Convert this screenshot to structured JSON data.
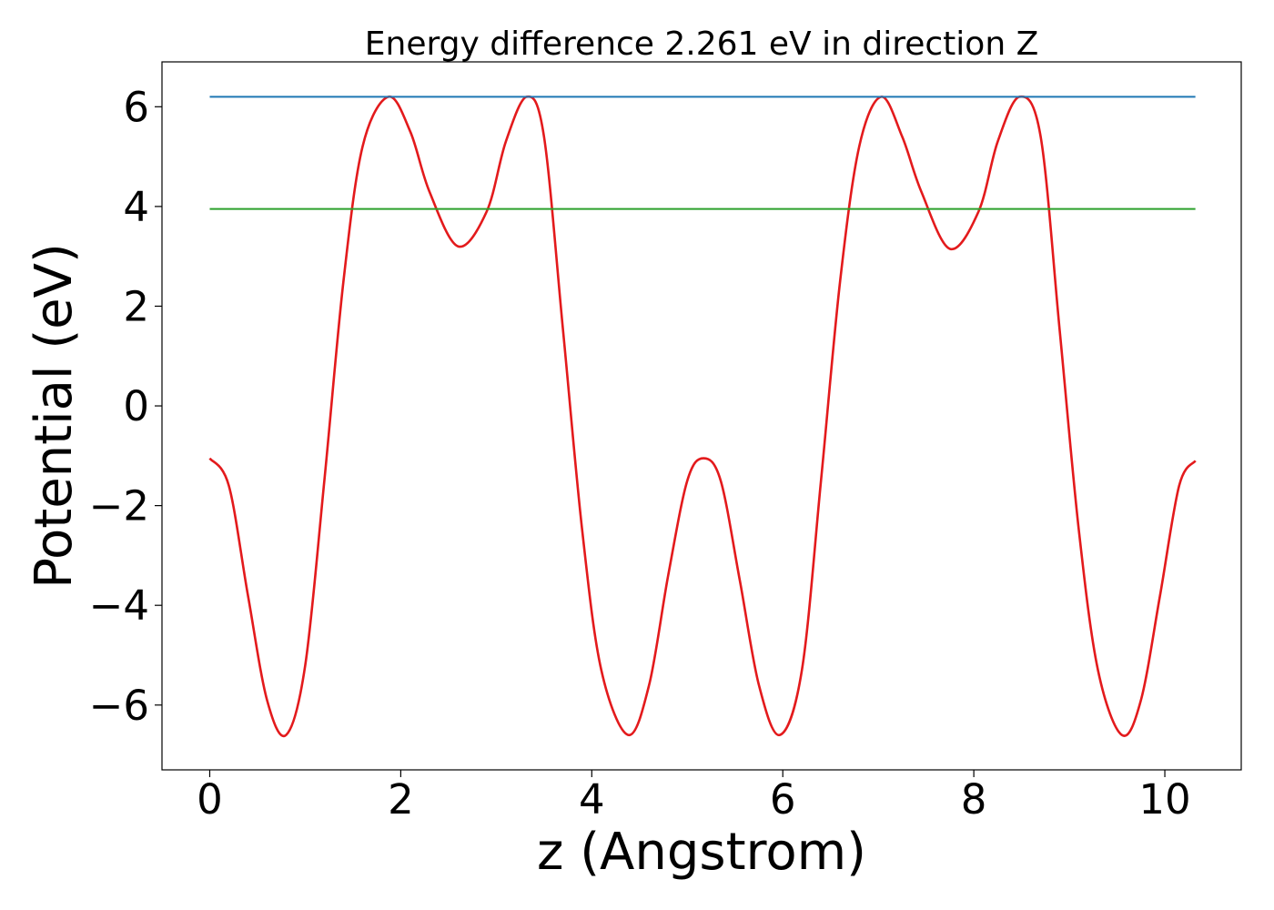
{
  "chart_data": {
    "type": "line",
    "title": "Energy difference 2.261 eV in direction Z",
    "xlabel": "z (Angstrom)",
    "ylabel": "Potential (eV)",
    "xlim": [
      -0.5,
      10.8
    ],
    "ylim": [
      -7.3,
      6.9
    ],
    "xticks": [
      0,
      2,
      4,
      6,
      8,
      10
    ],
    "xtick_labels": [
      "0",
      "2",
      "4",
      "6",
      "8",
      "10"
    ],
    "yticks": [
      -6,
      -4,
      -2,
      0,
      2,
      4,
      6
    ],
    "ytick_labels": [
      "−6",
      "−4",
      "−2",
      "0",
      "2",
      "4",
      "6"
    ],
    "grid": false,
    "series": [
      {
        "color": "#e31a1c",
        "x": [
          0.0,
          0.2,
          0.4,
          0.6,
          0.8,
          1.0,
          1.2,
          1.4,
          1.6,
          1.87,
          2.1,
          2.3,
          2.6,
          2.9,
          3.1,
          3.32,
          3.5,
          3.7,
          3.9,
          4.1,
          4.38,
          4.6,
          4.8,
          5.0,
          5.17,
          5.35,
          5.55,
          5.75,
          5.97,
          6.2,
          6.4,
          6.6,
          6.8,
          7.03,
          7.25,
          7.45,
          7.75,
          8.05,
          8.25,
          8.48,
          8.7,
          8.9,
          9.1,
          9.3,
          9.55,
          9.75,
          9.95,
          10.15,
          10.32
        ],
        "y": [
          -1.05,
          -1.6,
          -3.8,
          -5.9,
          -6.6,
          -5.2,
          -1.5,
          2.5,
          5.2,
          6.2,
          5.5,
          4.3,
          3.2,
          3.9,
          5.3,
          6.2,
          5.4,
          1.5,
          -2.5,
          -5.3,
          -6.6,
          -5.6,
          -3.4,
          -1.5,
          -1.05,
          -1.5,
          -3.5,
          -5.6,
          -6.6,
          -5.3,
          -1.5,
          2.5,
          5.2,
          6.2,
          5.4,
          4.3,
          3.15,
          3.9,
          5.3,
          6.2,
          5.4,
          1.5,
          -2.5,
          -5.3,
          -6.6,
          -5.9,
          -3.8,
          -1.6,
          -1.1
        ]
      },
      {
        "color": "#1f77b4",
        "x": [
          0,
          10.32
        ],
        "y": [
          6.2,
          6.2
        ]
      },
      {
        "color": "#2ca02c",
        "x": [
          0,
          10.32
        ],
        "y": [
          3.95,
          3.95
        ]
      }
    ]
  }
}
